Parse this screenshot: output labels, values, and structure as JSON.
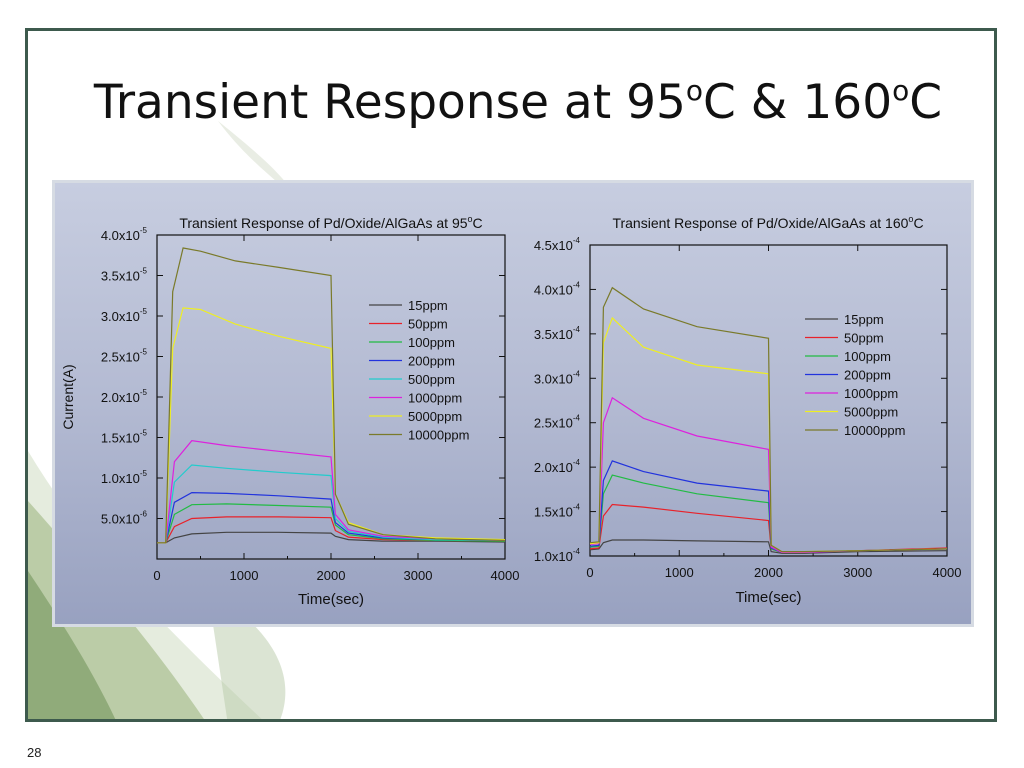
{
  "slide": {
    "title_prefix": "Transient Response at 95",
    "title_deg1": "o",
    "title_middle": "C & 160",
    "title_deg2": "o",
    "title_suffix": "C",
    "page_number": "28"
  },
  "colors": {
    "frame": "#3d5a4d",
    "15ppm": "#444444",
    "50ppm": "#e8222a",
    "100ppm": "#22bb44",
    "200ppm": "#2233dd",
    "500ppm": "#22cccc",
    "1000ppm": "#dd22dd",
    "5000ppm": "#eeee22",
    "10000ppm": "#7a7a2a"
  },
  "chart_data": [
    {
      "type": "line",
      "title": "Transient Response of Pd/Oxide/AlGaAs at 95°C",
      "xlabel": "Time(sec)",
      "ylabel": "Current(A)",
      "xlim": [
        0,
        4000
      ],
      "ylim": [
        0,
        4e-05
      ],
      "x_ticks": [
        0,
        1000,
        2000,
        3000,
        4000
      ],
      "x_tick_labels": [
        "0",
        "1000",
        "2000",
        "3000",
        "4000"
      ],
      "y_ticks": [
        5e-06,
        1e-05,
        1.5e-05,
        2e-05,
        2.5e-05,
        3e-05,
        3.5e-05,
        4e-05
      ],
      "y_tick_labels": [
        {
          "mantissa": "5.0x10",
          "exp": "-6"
        },
        {
          "mantissa": "1.0x10",
          "exp": "-5"
        },
        {
          "mantissa": "1.5x10",
          "exp": "-5"
        },
        {
          "mantissa": "2.0x10",
          "exp": "-5"
        },
        {
          "mantissa": "2.5x10",
          "exp": "-5"
        },
        {
          "mantissa": "3.0x10",
          "exp": "-5"
        },
        {
          "mantissa": "3.5x10",
          "exp": "-5"
        },
        {
          "mantissa": "4.0x10",
          "exp": "-5"
        }
      ],
      "legend_position": "right",
      "grid": false,
      "series": [
        {
          "name": "15ppm",
          "x": [
            0,
            100,
            200,
            400,
            800,
            1400,
            2000,
            2050,
            2200,
            2600,
            3200,
            4000
          ],
          "y": [
            2e-06,
            2e-06,
            2.6e-06,
            3.1e-06,
            3.3e-06,
            3.3e-06,
            3.2e-06,
            2.8e-06,
            2.4e-06,
            2.2e-06,
            2.2e-06,
            2.1e-06
          ]
        },
        {
          "name": "50ppm",
          "x": [
            0,
            100,
            200,
            400,
            800,
            1400,
            2000,
            2050,
            2200,
            2600,
            3200,
            4000
          ],
          "y": [
            2e-06,
            2e-06,
            4e-06,
            5e-06,
            5.2e-06,
            5.2e-06,
            5.1e-06,
            3.5e-06,
            2.7e-06,
            2.4e-06,
            2.3e-06,
            2.2e-06
          ]
        },
        {
          "name": "100ppm",
          "x": [
            0,
            100,
            200,
            400,
            800,
            1400,
            2000,
            2050,
            2200,
            2600,
            3200,
            4000
          ],
          "y": [
            2e-06,
            2e-06,
            5.5e-06,
            6.7e-06,
            6.8e-06,
            6.6e-06,
            6.4e-06,
            4.2e-06,
            3e-06,
            2.5e-06,
            2.3e-06,
            2.2e-06
          ]
        },
        {
          "name": "200ppm",
          "x": [
            0,
            100,
            200,
            400,
            800,
            1400,
            2000,
            2050,
            2200,
            2600,
            3200,
            4000
          ],
          "y": [
            2e-06,
            2e-06,
            7e-06,
            8.2e-06,
            8.1e-06,
            7.8e-06,
            7.4e-06,
            4.5e-06,
            3.2e-06,
            2.6e-06,
            2.4e-06,
            2.3e-06
          ]
        },
        {
          "name": "500ppm",
          "x": [
            0,
            100,
            200,
            400,
            800,
            1400,
            2000,
            2050,
            2200,
            2600,
            3200,
            4000
          ],
          "y": [
            2e-06,
            2e-06,
            9.5e-06,
            1.16e-05,
            1.12e-05,
            1.07e-05,
            1.03e-05,
            5e-06,
            3.4e-06,
            2.7e-06,
            2.4e-06,
            2.3e-06
          ]
        },
        {
          "name": "1000ppm",
          "x": [
            0,
            100,
            200,
            400,
            800,
            1400,
            2000,
            2050,
            2200,
            2600,
            3200,
            4000
          ],
          "y": [
            2e-06,
            2e-06,
            1.2e-05,
            1.46e-05,
            1.4e-05,
            1.33e-05,
            1.26e-05,
            5.5e-06,
            3.6e-06,
            2.8e-06,
            2.5e-06,
            2.3e-06
          ]
        },
        {
          "name": "5000ppm",
          "x": [
            0,
            100,
            180,
            300,
            500,
            900,
            1400,
            2000,
            2050,
            2200,
            2600,
            3200,
            4000
          ],
          "y": [
            2e-06,
            2e-06,
            2.6e-05,
            3.1e-05,
            3.08e-05,
            2.9e-05,
            2.75e-05,
            2.6e-05,
            8e-06,
            4.5e-06,
            3e-06,
            2.6e-06,
            2.4e-06
          ]
        },
        {
          "name": "10000ppm",
          "x": [
            0,
            100,
            180,
            300,
            500,
            900,
            1400,
            2000,
            2050,
            2200,
            2600,
            3200,
            4000
          ],
          "y": [
            2e-06,
            2e-06,
            3.3e-05,
            3.84e-05,
            3.8e-05,
            3.68e-05,
            3.6e-05,
            3.5e-05,
            8e-06,
            4.3e-06,
            3e-06,
            2.5e-06,
            2.3e-06
          ]
        }
      ]
    },
    {
      "type": "line",
      "title": "Transient Response of Pd/Oxide/AlGaAs at 160°C",
      "xlabel": "Time(sec)",
      "ylabel": "",
      "xlim": [
        0,
        4000
      ],
      "ylim": [
        0.0001,
        0.00045
      ],
      "x_ticks": [
        0,
        1000,
        2000,
        3000,
        4000
      ],
      "x_tick_labels": [
        "0",
        "1000",
        "2000",
        "3000",
        "4000"
      ],
      "y_ticks": [
        0.0001,
        0.00015,
        0.0002,
        0.00025,
        0.0003,
        0.00035,
        0.0004,
        0.00045
      ],
      "y_tick_labels": [
        {
          "mantissa": "1.0x10",
          "exp": "-4"
        },
        {
          "mantissa": "1.5x10",
          "exp": "-4"
        },
        {
          "mantissa": "2.0x10",
          "exp": "-4"
        },
        {
          "mantissa": "2.5x10",
          "exp": "-4"
        },
        {
          "mantissa": "3.0x10",
          "exp": "-4"
        },
        {
          "mantissa": "3.5x10",
          "exp": "-4"
        },
        {
          "mantissa": "4.0x10",
          "exp": "-4"
        },
        {
          "mantissa": "4.5x10",
          "exp": "-4"
        }
      ],
      "legend_position": "right",
      "grid": false,
      "series": [
        {
          "name": "15ppm",
          "x": [
            0,
            100,
            150,
            250,
            600,
            1200,
            2000,
            2030,
            2150,
            2400,
            3000,
            4000
          ],
          "y": [
            0.000107,
            0.000108,
            0.000115,
            0.000118,
            0.000118,
            0.000117,
            0.000116,
            0.000105,
            0.000103,
            0.000103,
            0.000105,
            0.000106
          ]
        },
        {
          "name": "50ppm",
          "x": [
            0,
            100,
            150,
            250,
            600,
            1200,
            2000,
            2030,
            2150,
            2400,
            3000,
            4000
          ],
          "y": [
            0.000108,
            0.000109,
            0.000145,
            0.000158,
            0.000155,
            0.000148,
            0.00014,
            0.000108,
            0.000104,
            0.000104,
            0.000106,
            0.000109
          ]
        },
        {
          "name": "100ppm",
          "x": [
            0,
            100,
            150,
            250,
            600,
            1200,
            2000,
            2030,
            2150,
            2400,
            3000,
            4000
          ],
          "y": [
            0.00011,
            0.000111,
            0.00017,
            0.000191,
            0.000182,
            0.00017,
            0.00016,
            0.000108,
            0.000104,
            0.000104,
            0.000106,
            0.000108
          ]
        },
        {
          "name": "200ppm",
          "x": [
            0,
            100,
            150,
            250,
            600,
            1200,
            2000,
            2030,
            2150,
            2400,
            3000,
            4000
          ],
          "y": [
            0.000111,
            0.000112,
            0.000185,
            0.000207,
            0.000195,
            0.000182,
            0.000173,
            0.000109,
            0.000104,
            0.000104,
            0.000106,
            0.000108
          ]
        },
        {
          "name": "1000ppm",
          "x": [
            0,
            100,
            150,
            250,
            600,
            1200,
            2000,
            2030,
            2150,
            2400,
            3000,
            4000
          ],
          "y": [
            0.000113,
            0.000114,
            0.00025,
            0.000278,
            0.000255,
            0.000235,
            0.00022,
            0.00011,
            0.000104,
            0.000104,
            0.000106,
            0.000108
          ]
        },
        {
          "name": "5000ppm",
          "x": [
            0,
            100,
            150,
            250,
            600,
            1200,
            2000,
            2030,
            2150,
            2400,
            3000,
            4000
          ],
          "y": [
            0.000114,
            0.000115,
            0.00034,
            0.000368,
            0.000335,
            0.000315,
            0.000305,
            0.000112,
            0.000105,
            0.000105,
            0.000106,
            0.000108
          ]
        },
        {
          "name": "10000ppm",
          "x": [
            0,
            100,
            150,
            250,
            600,
            1200,
            2000,
            2030,
            2150,
            2400,
            3000,
            4000
          ],
          "y": [
            0.000115,
            0.000116,
            0.00038,
            0.000402,
            0.000378,
            0.000358,
            0.000345,
            0.000112,
            0.000105,
            0.000105,
            0.000106,
            0.000108
          ]
        }
      ]
    }
  ]
}
